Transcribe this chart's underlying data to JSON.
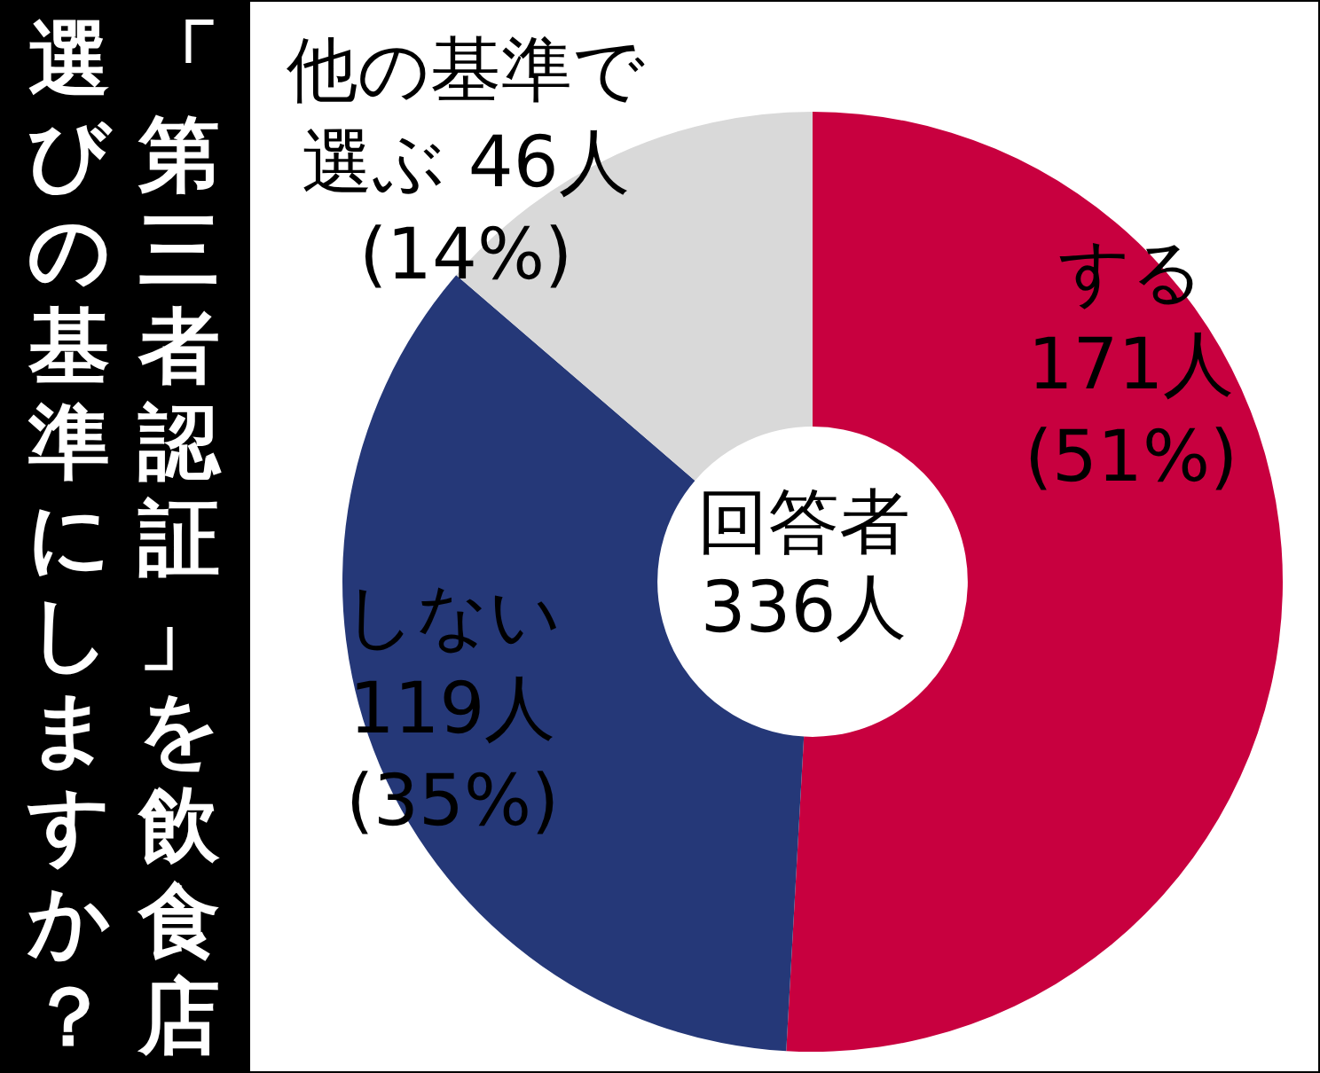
{
  "chart_data": {
    "type": "donut",
    "title": "「第三者認証」を飲食店選びの基準にしますか？",
    "categories": [
      "する",
      "しない",
      "他の基準で選ぶ"
    ],
    "values": [
      171,
      119,
      46
    ],
    "colors": [
      "#c8003f",
      "#253878",
      "#d9d9d9"
    ],
    "value_labels": [
      "171人\n(51%)",
      "119人\n(35%)",
      "46人\n(14%)"
    ],
    "annotations": [
      "回答者\n336人"
    ],
    "legend": false
  }
}
